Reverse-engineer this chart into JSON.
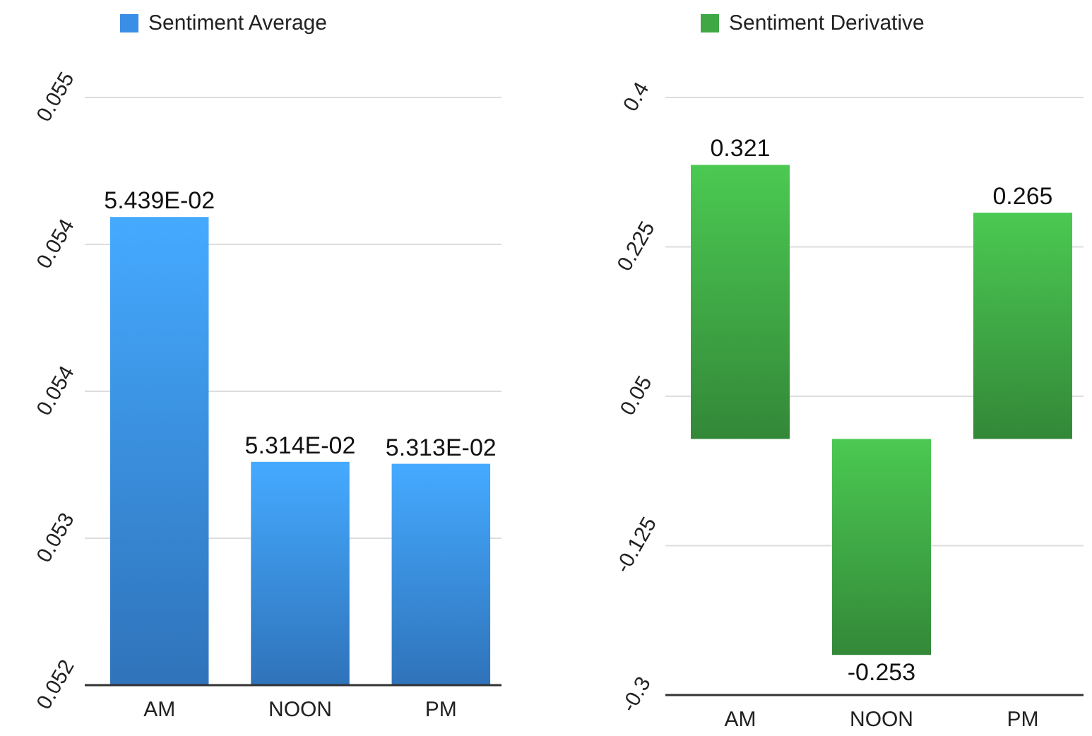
{
  "chart_data": [
    {
      "type": "bar",
      "categories": [
        "AM",
        "NOON",
        "PM"
      ],
      "series": [
        {
          "name": "Sentiment Average",
          "color": "#3a8ee6",
          "values": [
            0.05439,
            0.05314,
            0.05313
          ],
          "value_labels": [
            "5.439E-02",
            "5.314E-02",
            "5.313E-02"
          ]
        }
      ],
      "ylim": [
        0.052,
        0.055
      ],
      "yticks": [
        {
          "value": 0.052,
          "label": "0.052"
        },
        {
          "value": 0.05275,
          "label": "0.053"
        },
        {
          "value": 0.0535,
          "label": "0.054"
        },
        {
          "value": 0.05425,
          "label": "0.054"
        },
        {
          "value": 0.055,
          "label": "0.055"
        }
      ],
      "grid": "y",
      "legend": "top"
    },
    {
      "type": "bar",
      "categories": [
        "AM",
        "NOON",
        "PM"
      ],
      "series": [
        {
          "name": "Sentiment Derivative",
          "color": "#3fa845",
          "values": [
            0.321,
            -0.253,
            0.265
          ]
        }
      ],
      "ylim": [
        -0.3,
        0.4
      ],
      "yticks": [
        -0.3,
        -0.125,
        0.05,
        0.225,
        0.4
      ],
      "grid": "y",
      "legend": "top",
      "data_labels": true
    }
  ]
}
